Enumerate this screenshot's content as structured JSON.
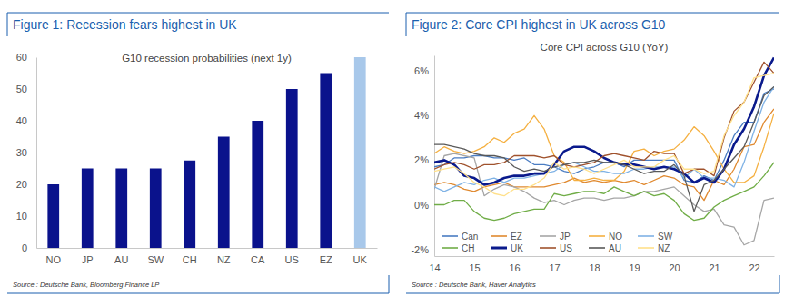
{
  "chart_data": [
    {
      "type": "bar",
      "title": "Figure 1: Recession fears highest in UK",
      "subtitle": "G10 recession probabilities (next 1y)",
      "source": "Source : Deutsche Bank, Bloomberg Finance LP",
      "categories": [
        "NO",
        "JP",
        "AU",
        "SW",
        "CH",
        "NZ",
        "CA",
        "US",
        "EZ",
        "UK"
      ],
      "values": [
        20,
        25,
        25,
        25,
        27.5,
        35,
        40,
        50,
        55,
        60
      ],
      "colors": [
        "#0a128c",
        "#0a128c",
        "#0a128c",
        "#0a128c",
        "#0a128c",
        "#0a128c",
        "#0a128c",
        "#0a128c",
        "#0a128c",
        "#a8c8ea"
      ],
      "ylim": [
        0,
        60
      ],
      "yticks": [
        0,
        10,
        20,
        30,
        40,
        50,
        60
      ],
      "grid": false
    },
    {
      "type": "line",
      "title": "Figure 2: Core CPI highest in UK across G10",
      "subtitle": "Core CPI across G10 (YoY)",
      "source": "Source : Deutsche Bank, Haver Analytics",
      "x": [
        14,
        14.25,
        14.5,
        14.75,
        15,
        15.25,
        15.5,
        15.75,
        16,
        16.25,
        16.5,
        16.75,
        17,
        17.25,
        17.5,
        17.75,
        18,
        18.25,
        18.5,
        18.75,
        19,
        19.25,
        19.5,
        19.75,
        20,
        20.25,
        20.5,
        20.75,
        21,
        21.25,
        21.5,
        21.75,
        22,
        22.25,
        22.5
      ],
      "series": [
        {
          "name": "Can",
          "color": "#4a7cc2",
          "values": [
            1.7,
            1.8,
            2.1,
            2.1,
            2.2,
            2.2,
            2.1,
            2.1,
            2.0,
            2.1,
            1.8,
            1.8,
            1.7,
            1.5,
            1.4,
            1.6,
            1.7,
            1.9,
            1.9,
            1.7,
            2.0,
            2.0,
            2.0,
            2.0,
            2.0,
            1.1,
            1.0,
            1.3,
            1.1,
            2.0,
            3.1,
            3.7,
            3.7,
            5.0,
            5.2
          ]
        },
        {
          "name": "EZ",
          "color": "#e0892f",
          "values": [
            0.9,
            1.0,
            0.9,
            0.7,
            0.6,
            0.8,
            0.9,
            1.0,
            0.8,
            0.8,
            0.8,
            0.8,
            0.9,
            1.0,
            1.2,
            1.0,
            1.1,
            1.0,
            1.1,
            1.0,
            1.1,
            0.9,
            1.1,
            1.3,
            1.2,
            0.9,
            0.8,
            0.2,
            1.1,
            0.9,
            1.6,
            2.6,
            2.7,
            3.7,
            4.3
          ]
        },
        {
          "name": "JP",
          "color": "#a6a6a6",
          "values": [
            0.7,
            2.2,
            2.3,
            2.2,
            2.1,
            0.4,
            0.7,
            0.9,
            0.8,
            0.6,
            0.3,
            0.1,
            0.2,
            0.0,
            0.2,
            0.3,
            0.3,
            0.2,
            0.3,
            0.3,
            0.4,
            0.6,
            0.6,
            0.7,
            0.8,
            0.4,
            0.0,
            -0.3,
            -0.2,
            -0.9,
            -1.0,
            -1.8,
            -1.6,
            0.2,
            0.3
          ]
        },
        {
          "name": "NO",
          "color": "#f5b041",
          "values": [
            2.3,
            2.6,
            2.4,
            2.3,
            2.4,
            2.6,
            3.0,
            2.8,
            3.2,
            3.4,
            4.0,
            3.4,
            2.2,
            1.9,
            1.1,
            1.1,
            1.2,
            1.1,
            1.1,
            1.5,
            2.4,
            2.5,
            2.2,
            2.4,
            2.5,
            2.9,
            3.5,
            3.1,
            2.4,
            1.6,
            1.0,
            1.0,
            1.3,
            2.6,
            4.1
          ]
        },
        {
          "name": "SW",
          "color": "#7fb2e5",
          "values": [
            0.8,
            0.6,
            0.8,
            1.0,
            0.9,
            1.1,
            1.2,
            1.0,
            1.2,
            1.2,
            1.3,
            1.4,
            1.5,
            1.8,
            1.9,
            1.7,
            1.5,
            1.5,
            1.4,
            1.4,
            1.6,
            1.6,
            1.7,
            1.7,
            1.7,
            1.2,
            1.6,
            1.2,
            1.2,
            1.1,
            0.8,
            1.9,
            3.3,
            4.6,
            5.3
          ]
        },
        {
          "name": "CH",
          "color": "#70ad47",
          "values": [
            0.0,
            0.0,
            0.2,
            0.2,
            -0.3,
            -0.6,
            -0.7,
            -0.6,
            -0.4,
            -0.3,
            -0.2,
            -0.2,
            0.5,
            0.4,
            0.5,
            0.6,
            0.6,
            0.5,
            0.8,
            0.6,
            0.4,
            0.6,
            0.4,
            0.5,
            0.2,
            -0.4,
            -0.7,
            -0.6,
            -0.1,
            0.2,
            0.4,
            0.6,
            0.8,
            1.3,
            1.9
          ]
        },
        {
          "name": "UK",
          "color": "#0a1a8c",
          "line_style": "thick",
          "values": [
            1.9,
            2.0,
            1.8,
            1.3,
            1.2,
            0.9,
            1.0,
            1.2,
            1.3,
            1.3,
            1.4,
            1.4,
            1.8,
            2.4,
            2.6,
            2.6,
            2.4,
            2.1,
            1.9,
            1.8,
            1.8,
            1.7,
            1.6,
            1.7,
            1.6,
            1.4,
            1.0,
            1.2,
            1.0,
            1.6,
            2.7,
            3.4,
            4.4,
            5.8,
            6.6
          ]
        },
        {
          "name": "US",
          "color": "#a0522d",
          "values": [
            1.6,
            1.8,
            1.9,
            1.8,
            1.6,
            1.8,
            1.8,
            1.9,
            2.2,
            2.2,
            2.2,
            2.1,
            2.2,
            1.8,
            1.7,
            1.8,
            1.9,
            2.2,
            2.3,
            2.2,
            2.1,
            2.0,
            2.4,
            2.3,
            2.3,
            1.4,
            1.6,
            1.6,
            1.3,
            3.0,
            4.2,
            4.6,
            5.5,
            6.4,
            5.9
          ]
        },
        {
          "name": "AU",
          "color": "#595959",
          "values": [
            2.7,
            2.7,
            2.6,
            2.5,
            2.3,
            2.2,
            2.2,
            2.1,
            1.7,
            1.5,
            1.6,
            1.5,
            1.7,
            1.8,
            1.9,
            1.9,
            2.0,
            1.9,
            1.9,
            1.8,
            1.6,
            1.4,
            1.5,
            1.5,
            1.8,
            1.3,
            -0.3,
            0.9,
            1.1,
            1.6,
            2.1,
            2.6,
            3.7,
            4.9,
            5.3
          ]
        },
        {
          "name": "NZ",
          "color": "#ffe08a",
          "values": [
            1.5,
            1.6,
            1.7,
            1.4,
            1.0,
            0.8,
            0.5,
            0.4,
            0.7,
            0.7,
            0.9,
            1.2,
            1.9,
            1.6,
            1.7,
            1.6,
            1.4,
            1.6,
            1.8,
            2.0,
            1.7,
            1.7,
            1.7,
            2.0,
            2.2,
            1.6,
            1.6,
            1.4,
            1.5,
            3.1,
            4.0,
            4.6,
            5.7,
            5.8,
            5.9
          ]
        }
      ],
      "xlim": [
        14,
        22.5
      ],
      "xticks": [
        14,
        15,
        16,
        17,
        18,
        19,
        20,
        21,
        22
      ],
      "ylim": [
        -2.3,
        6.7
      ],
      "yticks": [
        {
          "value": -2,
          "label": "-2%"
        },
        {
          "value": 0,
          "label": "0%"
        },
        {
          "value": 2,
          "label": "2%"
        },
        {
          "value": 4,
          "label": "4%"
        },
        {
          "value": 6,
          "label": "6%"
        }
      ],
      "grid": false,
      "legend": "lower left"
    }
  ]
}
